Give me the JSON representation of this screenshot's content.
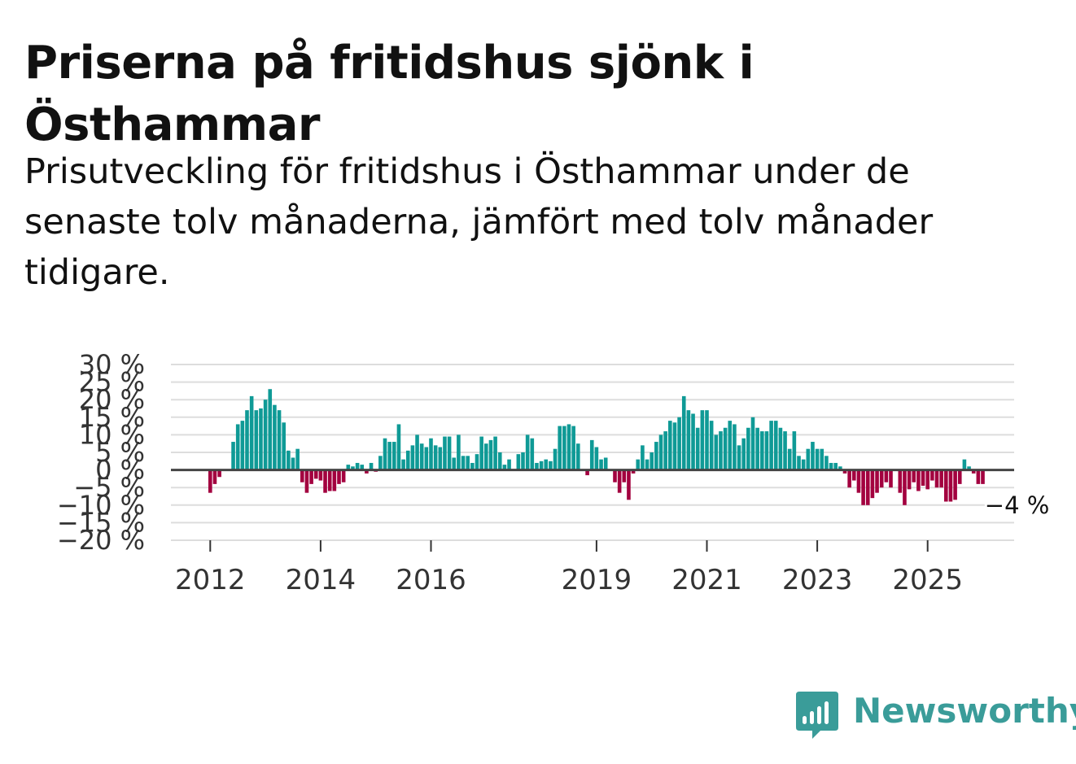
{
  "title": "Priserna på fritidshus sjönk i Östhammar",
  "subtitle": "Prisutveckling för fritidshus i Östhammar under de senaste tolv månaderna, jämfört med tolv månader tidigare.",
  "colors": {
    "positive": "#0f9a96",
    "negative": "#a3003f",
    "zero_line": "#444444",
    "grid": "#dddddd",
    "brand": "#3a9c99"
  },
  "brand": {
    "name": "Newsworthy",
    "icon": "bar-chart-speech-bubble-icon"
  },
  "chart_data": {
    "type": "bar",
    "title": "Priserna på fritidshus sjönk i Östhammar",
    "xlabel": "",
    "ylabel": "",
    "ylim": [
      -20,
      30
    ],
    "yticks": [
      30,
      25,
      20,
      15,
      10,
      5,
      0,
      -5,
      -10,
      -15,
      -20
    ],
    "ytick_labels": [
      "30 %",
      "25 %",
      "20 %",
      "15 %",
      "10 %",
      "5 %",
      "0 %",
      "−5 %",
      "−10 %",
      "−15 %",
      "−20 %"
    ],
    "xticks": [
      {
        "label": "2012",
        "index": 0
      },
      {
        "label": "2014",
        "index": 24
      },
      {
        "label": "2016",
        "index": 48
      },
      {
        "label": "2019",
        "index": 84
      },
      {
        "label": "2021",
        "index": 108
      },
      {
        "label": "2023",
        "index": 132
      },
      {
        "label": "2025",
        "index": 156
      }
    ],
    "x_start": "2012-01",
    "x_end": "2026-01",
    "values": [
      -6.5,
      -4,
      -2,
      0,
      0,
      8,
      13,
      14,
      17,
      21,
      17,
      17.5,
      20,
      23,
      18.5,
      17,
      13.5,
      5.5,
      3.5,
      6,
      -3.5,
      -6.5,
      -4,
      -2.5,
      -3,
      -6.5,
      -6,
      -6,
      -4,
      -3.5,
      1.5,
      1,
      2,
      1.5,
      -1,
      2,
      -0.5,
      4,
      9,
      8,
      8,
      13,
      3,
      5.5,
      7,
      10,
      7.5,
      6.5,
      9,
      7,
      6.5,
      9.5,
      9.5,
      3.5,
      10,
      4,
      4,
      2,
      4.5,
      9.5,
      7.5,
      8.5,
      9.5,
      5,
      1.5,
      3,
      0,
      4.5,
      5,
      10,
      9,
      2,
      2.5,
      3,
      2.5,
      6,
      12.5,
      12.5,
      13,
      12.5,
      7.5,
      0,
      -1.5,
      8.5,
      6.5,
      3,
      3.5,
      0,
      -3.5,
      -6.5,
      -3.5,
      -8.5,
      -1,
      3,
      7,
      3,
      5,
      8,
      10,
      11,
      14,
      13.5,
      15,
      21,
      17,
      16,
      12,
      17,
      17,
      14,
      10,
      11,
      12,
      14,
      13,
      7,
      9,
      12,
      15,
      12,
      11,
      11,
      14,
      14,
      12,
      11,
      6,
      11,
      4,
      3,
      6,
      8,
      6,
      6,
      4,
      2,
      2,
      1,
      -1,
      -5,
      -3,
      -6.5,
      -10,
      -10,
      -8,
      -6.5,
      -5,
      -3.5,
      -5,
      0,
      -6.5,
      -10,
      -5.5,
      -3.5,
      -6,
      -4.5,
      -5.5,
      -3,
      -5,
      -5,
      -9,
      -9,
      -8.5,
      -4,
      3,
      1,
      -1,
      -4,
      -4,
      null,
      null,
      null,
      null,
      null,
      null,
      null,
      null,
      null,
      null,
      null,
      null
    ],
    "highlight": {
      "label": "−4 %",
      "value": -4
    },
    "grid": true,
    "legend": "none"
  }
}
